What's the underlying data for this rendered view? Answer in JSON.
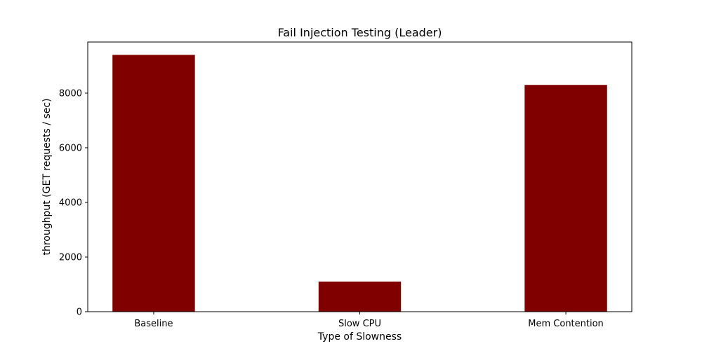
{
  "chart_data": {
    "type": "bar",
    "title": "Fail Injection Testing (Leader)",
    "xlabel": "Type of Slowness",
    "ylabel": "throughput (GET requests / sec)",
    "categories": [
      "Baseline",
      "Slow CPU",
      "Mem Contention"
    ],
    "values": [
      9400,
      1100,
      8300
    ],
    "ylim": [
      0,
      9870
    ],
    "yticks": [
      0,
      2000,
      4000,
      6000,
      8000
    ],
    "ytick_labels": [
      "0",
      "2000",
      "4000",
      "6000",
      "8000"
    ],
    "grid": false,
    "legend": "none",
    "bar_color": "#800000"
  }
}
